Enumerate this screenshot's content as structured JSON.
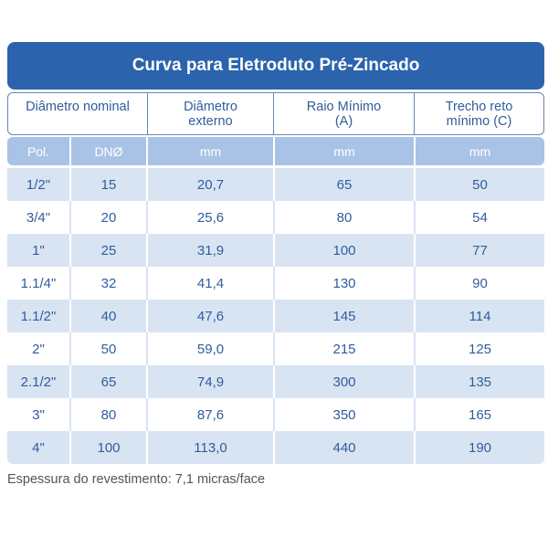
{
  "title": "Curva para Eletroduto Pré-Zincado",
  "headers": [
    "Diâmetro nominal",
    "Diâmetro\nexterno",
    "Raio Mínimo\n(A)",
    "Trecho reto\nmínimo (C)"
  ],
  "units": [
    "Pol.",
    "DNØ",
    "mm",
    "mm",
    "mm"
  ],
  "rows": [
    [
      "1/2\"",
      "15",
      "20,7",
      "65",
      "50"
    ],
    [
      "3/4\"",
      "20",
      "25,6",
      "80",
      "54"
    ],
    [
      "1\"",
      "25",
      "31,9",
      "100",
      "77"
    ],
    [
      "1.1/4\"",
      "32",
      "41,4",
      "130",
      "90"
    ],
    [
      "1.1/2\"",
      "40",
      "47,6",
      "145",
      "114"
    ],
    [
      "2\"",
      "50",
      "59,0",
      "215",
      "125"
    ],
    [
      "2.1/2\"",
      "65",
      "74,9",
      "300",
      "135"
    ],
    [
      "3\"",
      "80",
      "87,6",
      "350",
      "165"
    ],
    [
      "4\"",
      "100",
      "113,0",
      "440",
      "190"
    ]
  ],
  "footnote": "Espessura do revestimento: 7,1 micras/face",
  "colors": {
    "title_bg": "#2b63ad",
    "units_bg": "#a9c3e6",
    "row_alt": "#d9e4f3",
    "text": "#2f5d9b"
  }
}
